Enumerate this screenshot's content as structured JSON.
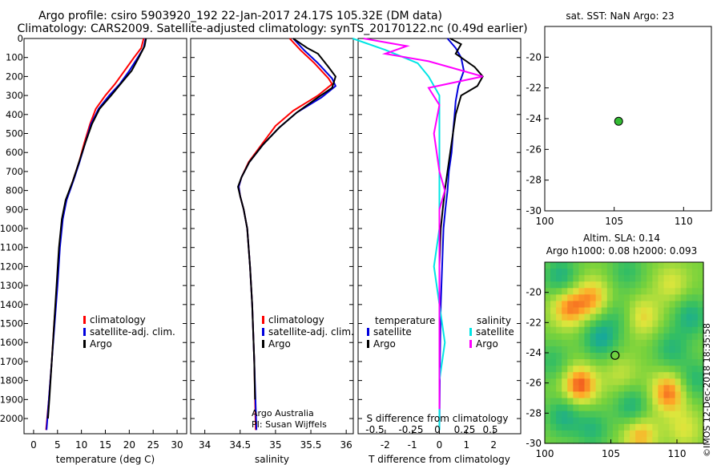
{
  "header": {
    "line1": "Argo profile: csiro 5903920_192 22-Jan-2017 24.17S 105.32E (DM data)",
    "line2": "Climatology: CARS2009. Satellite-adjusted climatology: synTS_20170122.nc (0.49d earlier)"
  },
  "watermark": "©IMOS 12-Dec-2018 18:35:58",
  "colors": {
    "climatology": "#ff0000",
    "satellite": "#0000dd",
    "argo": "#000000",
    "sal_satellite": "#00e5e5",
    "sal_argo": "#ff00ff"
  },
  "chart_data": [
    {
      "type": "line",
      "name": "temperature",
      "xlabel": "temperature (deg C)",
      "xlim": [
        -2,
        32
      ],
      "xticks": [
        0,
        5,
        10,
        15,
        20,
        25,
        30
      ],
      "ylim": [
        2080,
        0
      ],
      "yticks": [
        0,
        100,
        200,
        300,
        400,
        500,
        600,
        700,
        800,
        900,
        1000,
        1100,
        1200,
        1300,
        1400,
        1500,
        1600,
        1700,
        1800,
        1900,
        2000
      ],
      "legend": [
        "climatology",
        "satellite-adj. clim.",
        "Argo"
      ],
      "series": [
        {
          "name": "climatology",
          "points": [
            [
              23,
              0
            ],
            [
              22.5,
              50
            ],
            [
              21,
              100
            ],
            [
              19,
              170
            ],
            [
              17,
              240
            ],
            [
              15,
              300
            ],
            [
              13,
              370
            ],
            [
              11.8,
              450
            ],
            [
              10.6,
              550
            ],
            [
              9.5,
              650
            ],
            [
              8.2,
              750
            ],
            [
              6.8,
              850
            ],
            [
              6,
              950
            ],
            [
              5.4,
              1100
            ],
            [
              4.9,
              1300
            ],
            [
              4.3,
              1500
            ],
            [
              3.8,
              1700
            ],
            [
              3.2,
              1900
            ],
            [
              2.6,
              2060
            ]
          ]
        },
        {
          "name": "satellite-adj. clim.",
          "points": [
            [
              23.4,
              0
            ],
            [
              23,
              50
            ],
            [
              21.8,
              100
            ],
            [
              20,
              170
            ],
            [
              18,
              240
            ],
            [
              15.8,
              300
            ],
            [
              13.6,
              370
            ],
            [
              12,
              450
            ],
            [
              10.8,
              550
            ],
            [
              9.6,
              650
            ],
            [
              8.3,
              750
            ],
            [
              6.9,
              850
            ],
            [
              6.1,
              950
            ],
            [
              5.5,
              1100
            ],
            [
              5,
              1300
            ],
            [
              4.4,
              1500
            ],
            [
              3.8,
              1700
            ],
            [
              3.2,
              1900
            ],
            [
              2.7,
              2060
            ]
          ]
        },
        {
          "name": "Argo",
          "points": [
            [
              23.5,
              0
            ],
            [
              23.2,
              40
            ],
            [
              22,
              100
            ],
            [
              20.5,
              170
            ],
            [
              18.5,
              230
            ],
            [
              16.2,
              300
            ],
            [
              13.8,
              370
            ],
            [
              12.2,
              450
            ],
            [
              10.8,
              550
            ],
            [
              9.5,
              650
            ],
            [
              8.2,
              750
            ],
            [
              6.7,
              850
            ],
            [
              5.9,
              950
            ],
            [
              5.3,
              1100
            ],
            [
              4.8,
              1300
            ],
            [
              4.3,
              1500
            ],
            [
              3.8,
              1700
            ],
            [
              3.3,
              1900
            ],
            [
              3,
              2000
            ]
          ]
        }
      ]
    },
    {
      "type": "line",
      "name": "salinity",
      "xlabel": "salinity",
      "xlim": [
        33.8,
        36.1
      ],
      "xticks": [
        34,
        34.5,
        35,
        35.5,
        36
      ],
      "ylim": [
        2080,
        0
      ],
      "legend": [
        "climatology",
        "satellite-adj. clim.",
        "Argo"
      ],
      "note1": "Argo Australia",
      "note2": "PI: Susan Wijffels",
      "series": [
        {
          "name": "climatology",
          "points": [
            [
              35.2,
              0
            ],
            [
              35.35,
              60
            ],
            [
              35.55,
              130
            ],
            [
              35.75,
              210
            ],
            [
              35.8,
              240
            ],
            [
              35.6,
              300
            ],
            [
              35.25,
              380
            ],
            [
              35,
              460
            ],
            [
              34.8,
              560
            ],
            [
              34.62,
              650
            ],
            [
              34.52,
              730
            ],
            [
              34.48,
              780
            ],
            [
              34.5,
              830
            ],
            [
              34.55,
              900
            ],
            [
              34.6,
              1000
            ],
            [
              34.64,
              1200
            ],
            [
              34.67,
              1400
            ],
            [
              34.7,
              1700
            ],
            [
              34.72,
              2060
            ]
          ]
        },
        {
          "name": "satellite-adj. clim.",
          "points": [
            [
              35.25,
              0
            ],
            [
              35.4,
              60
            ],
            [
              35.6,
              130
            ],
            [
              35.8,
              210
            ],
            [
              35.85,
              250
            ],
            [
              35.65,
              310
            ],
            [
              35.3,
              390
            ],
            [
              35.05,
              470
            ],
            [
              34.82,
              560
            ],
            [
              34.63,
              650
            ],
            [
              34.52,
              730
            ],
            [
              34.48,
              780
            ],
            [
              34.5,
              830
            ],
            [
              34.55,
              900
            ],
            [
              34.6,
              1000
            ],
            [
              34.64,
              1200
            ],
            [
              34.67,
              1400
            ],
            [
              34.7,
              1700
            ],
            [
              34.73,
              2060
            ]
          ]
        },
        {
          "name": "Argo",
          "points": [
            [
              35.25,
              0
            ],
            [
              35.45,
              50
            ],
            [
              35.6,
              80
            ],
            [
              35.75,
              150
            ],
            [
              35.85,
              200
            ],
            [
              35.8,
              260
            ],
            [
              35.6,
              310
            ],
            [
              35.3,
              390
            ],
            [
              35.05,
              470
            ],
            [
              34.82,
              560
            ],
            [
              34.63,
              650
            ],
            [
              34.52,
              730
            ],
            [
              34.47,
              780
            ],
            [
              34.5,
              830
            ],
            [
              34.55,
              900
            ],
            [
              34.6,
              1000
            ],
            [
              34.64,
              1200
            ],
            [
              34.67,
              1400
            ],
            [
              34.7,
              1700
            ],
            [
              34.71,
              1900
            ]
          ]
        }
      ]
    },
    {
      "type": "line",
      "name": "difference",
      "xlabel": "T difference from climatology",
      "xlabel2": "S difference from climatology",
      "xlim": [
        -3,
        3
      ],
      "xticks": [
        -2,
        -1,
        0,
        1,
        2
      ],
      "sticks": [
        "-0.5",
        "-0.25",
        "0",
        "0.25",
        "0.5"
      ],
      "ylim": [
        2080,
        0
      ],
      "legend_temperature": {
        "title": "temperature",
        "items": [
          "satellite",
          "Argo"
        ]
      },
      "legend_salinity": {
        "title": "salinity",
        "items": [
          "satellite",
          "Argo"
        ]
      },
      "series": [
        {
          "name": "T satellite",
          "points": [
            [
              0.3,
              0
            ],
            [
              0.6,
              50
            ],
            [
              0.8,
              100
            ],
            [
              0.9,
              170
            ],
            [
              0.7,
              250
            ],
            [
              0.6,
              330
            ],
            [
              0.55,
              420
            ],
            [
              0.5,
              500
            ],
            [
              0.45,
              600
            ],
            [
              0.35,
              700
            ],
            [
              0.3,
              800
            ],
            [
              0.22,
              900
            ],
            [
              0.15,
              1000
            ],
            [
              0.1,
              1200
            ],
            [
              0.05,
              1400
            ],
            [
              0.02,
              1700
            ],
            [
              0,
              2060
            ]
          ]
        },
        {
          "name": "T Argo",
          "points": [
            [
              0.4,
              0
            ],
            [
              0.8,
              30
            ],
            [
              0.6,
              80
            ],
            [
              1.3,
              150
            ],
            [
              1.6,
              200
            ],
            [
              1.4,
              250
            ],
            [
              0.8,
              300
            ],
            [
              0.6,
              400
            ],
            [
              0.5,
              500
            ],
            [
              0.4,
              600
            ],
            [
              0.3,
              700
            ],
            [
              0.2,
              800
            ],
            [
              0.12,
              900
            ],
            [
              0.05,
              1000
            ],
            [
              0,
              1200
            ],
            [
              0,
              1500
            ],
            [
              0,
              1700
            ],
            [
              0,
              1950
            ]
          ]
        },
        {
          "name": "S satellite",
          "points": [
            [
              -0.8,
              0
            ],
            [
              -0.5,
              60
            ],
            [
              -0.2,
              130
            ],
            [
              -0.1,
              200
            ],
            [
              0,
              300
            ],
            [
              0,
              450
            ],
            [
              0,
              600
            ],
            [
              0,
              800
            ],
            [
              0,
              1000
            ],
            [
              -0.05,
              1200
            ],
            [
              0,
              1400
            ],
            [
              0.05,
              1600
            ],
            [
              0,
              1800
            ],
            [
              0,
              2060
            ]
          ]
        },
        {
          "name": "S Argo",
          "points": [
            [
              -0.7,
              0
            ],
            [
              -0.3,
              40
            ],
            [
              -0.5,
              80
            ],
            [
              -0.1,
              120
            ],
            [
              0.4,
              200
            ],
            [
              -0.1,
              260
            ],
            [
              0,
              350
            ],
            [
              -0.05,
              500
            ],
            [
              0,
              700
            ],
            [
              0.05,
              800
            ],
            [
              0,
              900
            ],
            [
              0,
              1100
            ],
            [
              0,
              1300
            ],
            [
              0,
              1500
            ],
            [
              0,
              1700
            ],
            [
              0,
              1950
            ]
          ]
        }
      ]
    },
    {
      "type": "scatter",
      "name": "sst_map",
      "title": "sat. SST: NaN Argo: 23",
      "xlim": [
        100,
        112
      ],
      "ylim": [
        -30,
        -18
      ],
      "xticks": [
        100,
        105,
        110
      ],
      "yticks": [
        -20,
        -22,
        -24,
        -26,
        -28,
        -30
      ],
      "points": [
        {
          "x": 105.32,
          "y": -24.17
        }
      ]
    },
    {
      "type": "heatmap",
      "name": "sla_map",
      "title1": "Altim. SLA: 0.14",
      "title2": "Argo h1000: 0.08 h2000: 0.093",
      "xlim": [
        100,
        112
      ],
      "ylim": [
        -30,
        -18
      ],
      "xticks": [
        100,
        105,
        110
      ],
      "yticks": [
        -20,
        -22,
        -24,
        -26,
        -28,
        -30
      ],
      "points": [
        {
          "x": 105.32,
          "y": -24.17
        }
      ]
    }
  ]
}
